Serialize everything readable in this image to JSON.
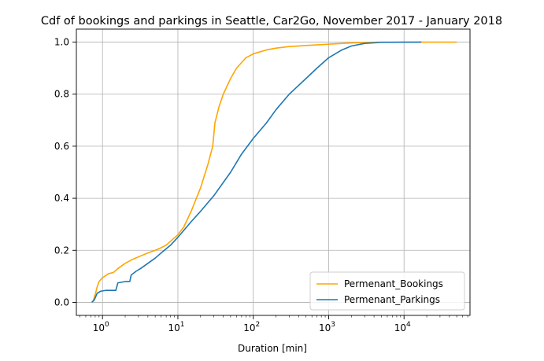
{
  "chart_data": {
    "type": "line",
    "title": "Cdf of bookings and parkings in Seattle, Car2Go, November 2017 - January 2018",
    "xlabel": "Duration [min]",
    "ylabel": "",
    "xscale": "log",
    "xlim": [
      0.45,
      75000
    ],
    "ylim": [
      -0.05,
      1.05
    ],
    "grid": true,
    "legend_position": "lower-right",
    "x_ticks": [
      {
        "value": 1,
        "base": "10",
        "exp": "0"
      },
      {
        "value": 10,
        "base": "10",
        "exp": "1"
      },
      {
        "value": 100,
        "base": "10",
        "exp": "2"
      },
      {
        "value": 1000,
        "base": "10",
        "exp": "3"
      },
      {
        "value": 10000,
        "base": "10",
        "exp": "4"
      }
    ],
    "y_ticks": [
      "0.0",
      "0.2",
      "0.4",
      "0.6",
      "0.8",
      "1.0"
    ],
    "series": [
      {
        "name": "Permenant_Bookings",
        "color": "#FFA500",
        "points": [
          [
            0.74,
            0.0
          ],
          [
            0.8,
            0.03
          ],
          [
            0.85,
            0.06
          ],
          [
            0.9,
            0.08
          ],
          [
            1.0,
            0.095
          ],
          [
            1.2,
            0.11
          ],
          [
            1.4,
            0.115
          ],
          [
            1.6,
            0.13
          ],
          [
            2.0,
            0.15
          ],
          [
            2.5,
            0.165
          ],
          [
            3.0,
            0.175
          ],
          [
            4.0,
            0.19
          ],
          [
            5.0,
            0.2
          ],
          [
            6.0,
            0.21
          ],
          [
            7.0,
            0.22
          ],
          [
            8.0,
            0.235
          ],
          [
            10.0,
            0.26
          ],
          [
            12.0,
            0.29
          ],
          [
            15.0,
            0.35
          ],
          [
            20.0,
            0.44
          ],
          [
            25.0,
            0.53
          ],
          [
            29.0,
            0.6
          ],
          [
            31.0,
            0.69
          ],
          [
            35.0,
            0.75
          ],
          [
            40.0,
            0.8
          ],
          [
            50.0,
            0.86
          ],
          [
            60.0,
            0.9
          ],
          [
            80.0,
            0.94
          ],
          [
            100.0,
            0.955
          ],
          [
            150.0,
            0.97
          ],
          [
            200.0,
            0.977
          ],
          [
            300.0,
            0.983
          ],
          [
            500.0,
            0.987
          ],
          [
            1000.0,
            0.992
          ],
          [
            2000.0,
            0.997
          ],
          [
            5000.0,
            1.0
          ],
          [
            50000.0,
            1.0
          ]
        ]
      },
      {
        "name": "Permenant_Parkings",
        "color": "#1F77B4",
        "points": [
          [
            0.72,
            0.0
          ],
          [
            0.78,
            0.01
          ],
          [
            0.85,
            0.035
          ],
          [
            0.95,
            0.043
          ],
          [
            1.1,
            0.046
          ],
          [
            1.5,
            0.046
          ],
          [
            1.6,
            0.075
          ],
          [
            2.0,
            0.08
          ],
          [
            2.3,
            0.08
          ],
          [
            2.4,
            0.105
          ],
          [
            2.8,
            0.12
          ],
          [
            3.2,
            0.13
          ],
          [
            4.0,
            0.15
          ],
          [
            5.0,
            0.17
          ],
          [
            6.0,
            0.19
          ],
          [
            8.0,
            0.22
          ],
          [
            10.0,
            0.25
          ],
          [
            15.0,
            0.31
          ],
          [
            20.0,
            0.35
          ],
          [
            30.0,
            0.41
          ],
          [
            50.0,
            0.5
          ],
          [
            70.0,
            0.57
          ],
          [
            100.0,
            0.63
          ],
          [
            150.0,
            0.69
          ],
          [
            200.0,
            0.74
          ],
          [
            300.0,
            0.8
          ],
          [
            500.0,
            0.86
          ],
          [
            700.0,
            0.9
          ],
          [
            1000.0,
            0.94
          ],
          [
            1500.0,
            0.97
          ],
          [
            2000.0,
            0.985
          ],
          [
            3000.0,
            0.995
          ],
          [
            5000.0,
            0.999
          ],
          [
            17000.0,
            1.0
          ]
        ]
      }
    ]
  }
}
